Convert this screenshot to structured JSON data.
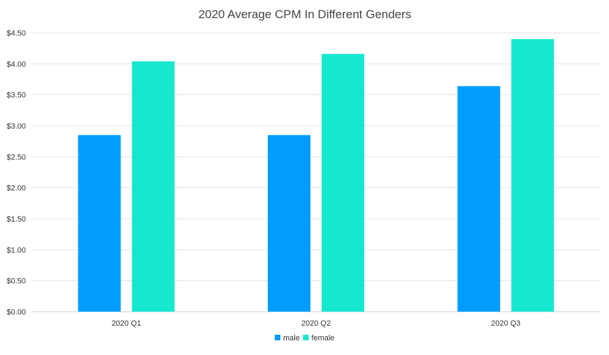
{
  "chart_data": {
    "type": "bar",
    "title": "2020 Average CPM In Different Genders",
    "xlabel": "",
    "ylabel": "",
    "categories": [
      "2020 Q1",
      "2020 Q2",
      "2020 Q3"
    ],
    "series": [
      {
        "name": "male",
        "values": [
          2.85,
          2.85,
          3.64
        ],
        "color": "#009DFF"
      },
      {
        "name": "female",
        "values": [
          4.04,
          4.16,
          4.4
        ],
        "color": "#16E8CF"
      }
    ],
    "ylim": [
      0,
      4.5
    ],
    "yticks": [
      "$0.00",
      "$0.50",
      "$1.00",
      "$1.50",
      "$2.00",
      "$2.50",
      "$3.00",
      "$3.50",
      "$4.00",
      "$4.50"
    ],
    "grid": true,
    "legend_position": "bottom"
  }
}
